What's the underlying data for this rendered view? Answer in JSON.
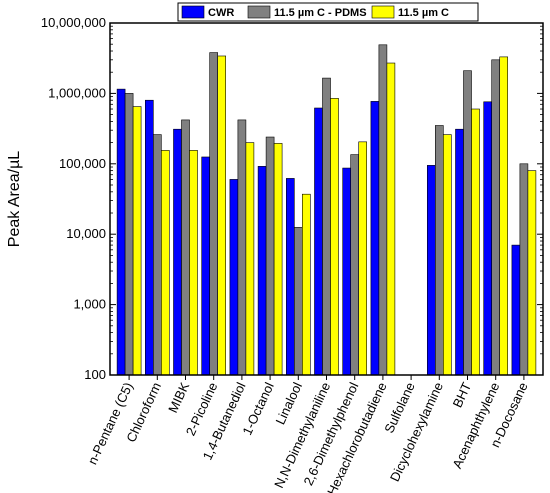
{
  "chart_data": {
    "type": "bar",
    "scale": "log",
    "ylabel": "Peak Area/µL",
    "xlabel": "",
    "ylim": [
      100,
      10000000
    ],
    "yticks": [
      100,
      1000,
      10000,
      100000,
      1000000,
      10000000
    ],
    "ytick_labels": [
      "100",
      "1,000",
      "10,000",
      "100,000",
      "1,000,000",
      "10,000,000"
    ],
    "legend_position": "top",
    "grid": false,
    "categories": [
      "n-Pentane (C5)",
      "Chloroform",
      "MIBK",
      "2-Picoline",
      "1,4-Butanediol",
      "1-Octanol",
      "Linalool",
      "N,N-Dimethylaniline",
      "2,6-Dimethylphenol",
      "Hexachlorobutadiene",
      "Sulfolane",
      "Dicyclohexylamine",
      "BHT",
      "Acenaphthylene",
      "n-Docosane"
    ],
    "series": [
      {
        "name": "CWR",
        "color": "#0000ff",
        "values": [
          1150000,
          800000,
          310000,
          125000,
          60000,
          92000,
          62000,
          620000,
          87000,
          770000,
          null,
          95000,
          310000,
          760000,
          7000
        ]
      },
      {
        "name": "11.5 µm C - PDMS",
        "color": "#808080",
        "values": [
          1000000,
          260000,
          420000,
          3800000,
          420000,
          240000,
          12500,
          1650000,
          135000,
          4900000,
          null,
          350000,
          2100000,
          3000000,
          100000
        ]
      },
      {
        "name": "11.5 µm C",
        "color": "#ffff00",
        "values": [
          650000,
          155000,
          155000,
          3400000,
          200000,
          195000,
          37000,
          850000,
          205000,
          2700000,
          null,
          260000,
          600000,
          3300000,
          80000
        ]
      }
    ]
  }
}
